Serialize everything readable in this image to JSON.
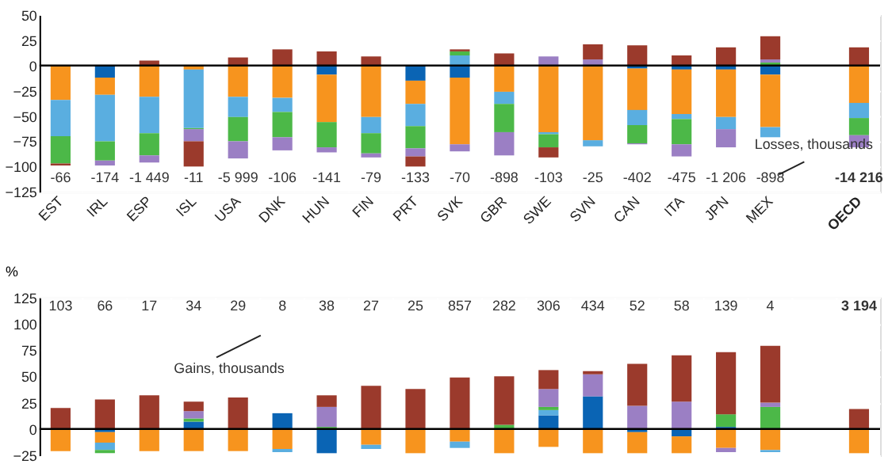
{
  "chart_data": [
    {
      "type": "bar",
      "stacked": true,
      "categories": [
        "EST",
        "IRL",
        "ESP",
        "ISL",
        "USA",
        "DNK",
        "HUN",
        "FIN",
        "PRT",
        "SVK",
        "GBR",
        "SWE",
        "SVN",
        "CAN",
        "ITA",
        "JPN",
        "MEX",
        null,
        "OECD"
      ],
      "series": [
        {
          "color": "#0a64b4",
          "values": [
            -1,
            -12,
            null,
            null,
            null,
            null,
            -9,
            null,
            -15,
            -12,
            null,
            null,
            null,
            -3,
            -4,
            -4,
            -9,
            null,
            null
          ]
        },
        {
          "color": "#f7941e",
          "values": [
            -33,
            -17,
            -31,
            -4,
            -31,
            -32,
            -47,
            -51,
            -23,
            -66,
            -26,
            -66,
            -74,
            -41,
            -44,
            -47,
            -52,
            null,
            -37
          ]
        },
        {
          "color": "#5aaee0",
          "values": [
            -36,
            -46,
            -36,
            -58,
            -20,
            -14,
            null,
            -16,
            -22,
            10,
            -12,
            -2,
            -6,
            -15,
            -5,
            -12,
            -10,
            null,
            -15
          ]
        },
        {
          "color": "#4cb848",
          "values": [
            -27,
            -19,
            -22,
            -1,
            -24,
            -25,
            -25,
            -20,
            -22,
            4,
            -28,
            -13,
            null,
            -18,
            -25,
            null,
            3,
            null,
            -17
          ]
        },
        {
          "color": "#9b7fc4",
          "values": [
            null,
            -5,
            -7,
            -12,
            -17,
            -13,
            -5,
            -4,
            -8,
            -7,
            -23,
            9,
            6,
            -1,
            -12,
            -18,
            3,
            null,
            -12
          ]
        },
        {
          "color": "#9b3a2c",
          "values": [
            -2,
            null,
            5,
            -25,
            8,
            16,
            14,
            9,
            -10,
            2,
            12,
            -10,
            15,
            20,
            10,
            18,
            23,
            null,
            18
          ]
        }
      ],
      "ylim": [
        -125,
        50
      ],
      "yticks": [
        -125,
        -100,
        -75,
        -50,
        -25,
        0,
        25,
        50
      ],
      "grid": true,
      "ref_lines": [
        {
          "axis": "y",
          "value": 0,
          "color": "#000000"
        }
      ],
      "annotations": [
        "-66",
        "-174",
        "-1 449",
        "-11",
        "-5 999",
        "-106",
        "-141",
        "-79",
        "-133",
        "-70",
        "-898",
        "-103",
        "-25",
        "-402",
        "-475",
        "-1 206",
        "-898",
        "-14 216",
        "Losses, thousands"
      ]
    },
    {
      "type": "bar",
      "stacked": true,
      "series": [
        {
          "color": "#0a64b4",
          "values": [
            null,
            -3,
            null,
            7,
            null,
            15,
            -23,
            null,
            null,
            null,
            null,
            13,
            31,
            -3,
            -7,
            2,
            null,
            null,
            null
          ]
        },
        {
          "color": "#f7941e",
          "values": [
            -21,
            -10,
            -21,
            -21,
            -21,
            -19,
            null,
            -15,
            -23,
            -12,
            -23,
            -17,
            -23,
            -20,
            -16,
            -18,
            -20,
            null,
            -23
          ]
        },
        {
          "color": "#5aaee0",
          "values": [
            null,
            -7,
            null,
            null,
            null,
            -3,
            null,
            -4,
            null,
            -6,
            null,
            5,
            null,
            null,
            null,
            null,
            -2,
            null,
            null
          ]
        },
        {
          "color": "#4cb848",
          "values": [
            null,
            -3,
            null,
            3,
            null,
            null,
            2,
            null,
            null,
            null,
            4,
            3,
            null,
            null,
            null,
            12,
            21,
            null,
            null
          ]
        },
        {
          "color": "#9b7fc4",
          "values": [
            null,
            null,
            null,
            7,
            null,
            null,
            19,
            null,
            null,
            null,
            null,
            17,
            21,
            22,
            26,
            -4,
            4,
            null,
            null
          ]
        },
        {
          "color": "#9b3a2c",
          "values": [
            20,
            28,
            32,
            9,
            30,
            null,
            11,
            41,
            38,
            49,
            46,
            18,
            3,
            40,
            44,
            59,
            54,
            null,
            19
          ]
        }
      ],
      "categories": [
        null,
        null,
        null,
        null,
        null,
        null,
        null,
        null,
        null,
        null,
        null,
        null,
        null,
        null,
        null,
        null,
        null,
        null,
        null
      ],
      "ylabel": "%",
      "ylim": [
        -25,
        125
      ],
      "yticks": [
        -25,
        0,
        25,
        50,
        75,
        100,
        125
      ],
      "grid": true,
      "tick_labels": "y",
      "ref_lines": [
        {
          "axis": "y",
          "value": 0,
          "color": "#000000"
        }
      ],
      "annotations": [
        "103",
        "66",
        "17",
        "34",
        "29",
        "8",
        "38",
        "27",
        "25",
        "857",
        "282",
        "306",
        "434",
        "52",
        "58",
        "139",
        "4",
        "3 194",
        "Gains, thousands"
      ]
    }
  ]
}
